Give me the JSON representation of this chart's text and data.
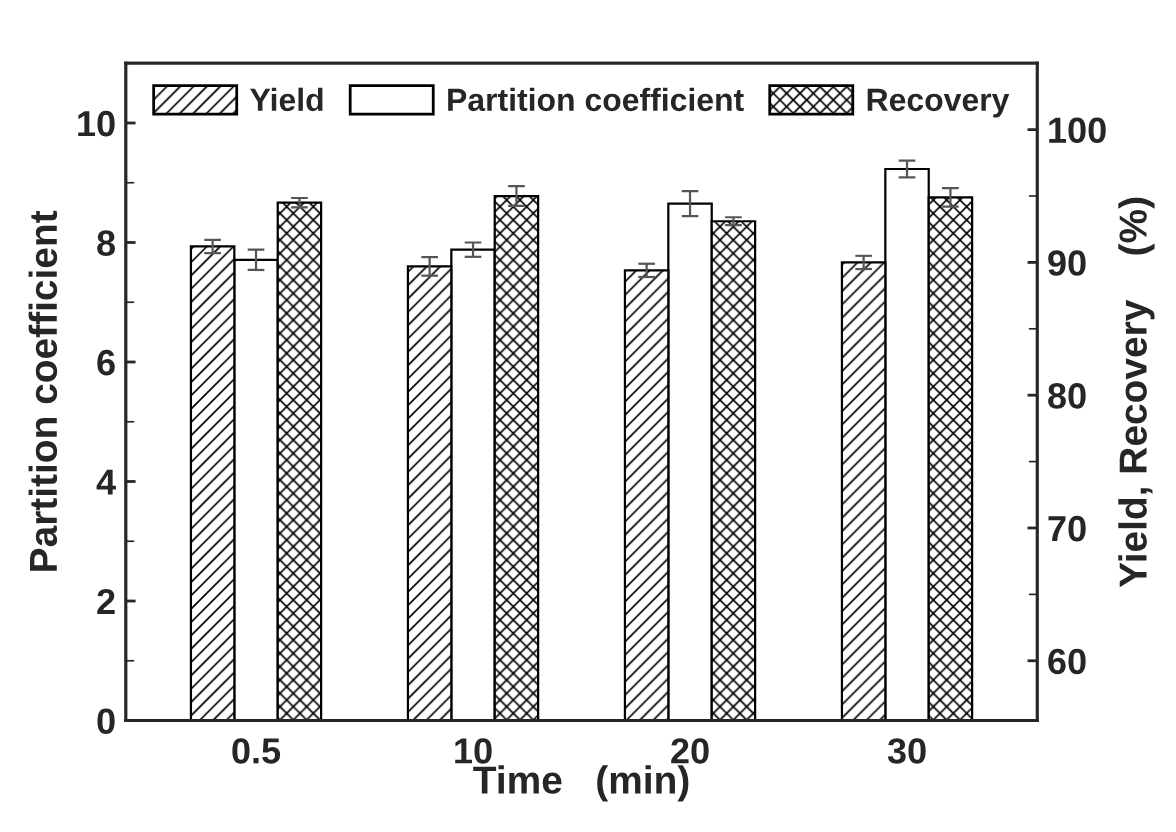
{
  "chart_data": {
    "type": "bar",
    "xlabel": "Time   (min)",
    "ylabel": "Partition coefficient",
    "y2label": "Yield, Recovery    (%)",
    "categories": [
      "0.5",
      "10",
      "20",
      "30"
    ],
    "series": [
      {
        "name": "Yield",
        "color": "#000000",
        "axis": "y2",
        "values": [
          91.2,
          89.7,
          89.4,
          90.0
        ],
        "errors": [
          0.5,
          0.7,
          0.5,
          0.5
        ]
      },
      {
        "name": "Partition coefficient",
        "color": "#ffffff",
        "values": [
          7.71,
          7.88,
          8.65,
          9.23
        ],
        "errors": [
          0.17,
          0.12,
          0.21,
          0.14
        ]
      },
      {
        "name": "Recovery",
        "color": "#000000",
        "axis": "y2",
        "values": [
          94.5,
          95.0,
          93.1,
          94.9
        ],
        "errors": [
          0.35,
          0.75,
          0.3,
          0.7
        ]
      }
    ],
    "ylim": [
      0,
      11
    ],
    "yticks": [
      0,
      2,
      4,
      6,
      8,
      10
    ],
    "y2lim": [
      55.5,
      105
    ],
    "y2ticks": [
      60,
      70,
      80,
      90,
      100
    ],
    "legend": "top",
    "grid": false
  }
}
